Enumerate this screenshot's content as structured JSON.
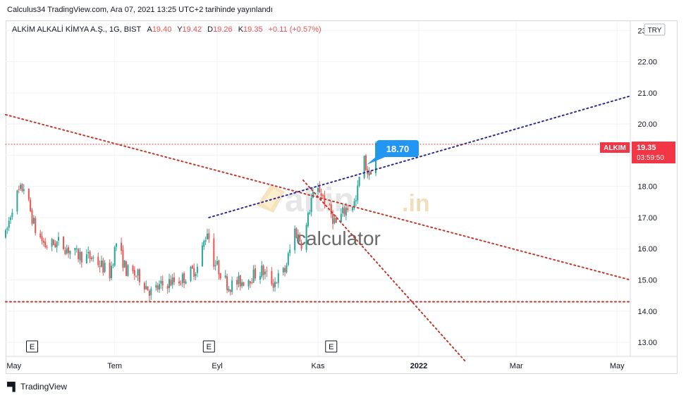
{
  "header": {
    "published": "Calculus34 TradingView.com, Ara 07, 2021 13:25 UTC+2 tarihinde yayınlandı"
  },
  "legend": {
    "symbol": "ALKİM ALKALİ KİMYA A.Ş., 1G, BIST",
    "open_label": "A",
    "open": "19.40",
    "high_label": "Y",
    "high": "19.42",
    "low_label": "D",
    "low": "19.26",
    "close_label": "K",
    "close": "19.35",
    "change": "+0.11 (+0.57%)"
  },
  "currency_badge": "TRY",
  "price_tag": {
    "ticker": "ALKIM",
    "price": "19.35",
    "countdown": "03:59:50"
  },
  "callout": {
    "value": "18.70"
  },
  "watermark": {
    "brand": "altin",
    "brand_suffix": ".in",
    "sub": "calculator"
  },
  "footer": {
    "brand": "TradingView"
  },
  "colors": {
    "up": "#26a69a",
    "down": "#ef5350",
    "red_line": "#c0392b",
    "blue_line": "#2e2a8f",
    "callout": "#2196f3",
    "tag_red": "#f23645"
  },
  "chart_data": {
    "type": "candlestick",
    "symbol": "ALKIM",
    "y_ticks": [
      "13.00",
      "14.00",
      "15.00",
      "16.00",
      "17.00",
      "18.00",
      "19.00",
      "20.00",
      "21.00",
      "22.00",
      "23.00"
    ],
    "ylim": [
      12.55,
      23.3
    ],
    "x_ticks": [
      "May",
      "Tem",
      "Eyl",
      "Kas",
      "2022",
      "Mar",
      "May"
    ],
    "x_tick_dates": [
      "2021-05-01",
      "2021-07-01",
      "2021-09-01",
      "2021-11-01",
      "2022-01-01",
      "2022-03-01",
      "2022-05-01"
    ],
    "xlim": [
      "2021-04-26",
      "2022-05-09"
    ],
    "last_price": 19.35,
    "events": [
      {
        "label": "E",
        "date": "2021-05-12"
      },
      {
        "label": "E",
        "date": "2021-08-27"
      },
      {
        "label": "E",
        "date": "2021-11-09"
      }
    ],
    "price_path": [
      [
        "2021-04-26",
        16.4
      ],
      [
        "2021-05-01",
        17.6
      ],
      [
        "2021-05-07",
        18.0
      ],
      [
        "2021-05-11",
        17.2
      ],
      [
        "2021-05-14",
        16.6
      ],
      [
        "2021-05-20",
        16.1
      ],
      [
        "2021-05-28",
        16.2
      ],
      [
        "2021-06-08",
        15.8
      ],
      [
        "2021-06-18",
        15.7
      ],
      [
        "2021-06-28",
        15.2
      ],
      [
        "2021-07-02",
        16.2
      ],
      [
        "2021-07-08",
        15.3
      ],
      [
        "2021-07-16",
        15.1
      ],
      [
        "2021-07-23",
        14.6
      ],
      [
        "2021-08-01",
        14.9
      ],
      [
        "2021-08-10",
        15.0
      ],
      [
        "2021-08-20",
        15.4
      ],
      [
        "2021-08-26",
        16.6
      ],
      [
        "2021-08-30",
        15.6
      ],
      [
        "2021-09-08",
        14.8
      ],
      [
        "2021-09-18",
        15.0
      ],
      [
        "2021-09-28",
        15.3
      ],
      [
        "2021-10-05",
        14.9
      ],
      [
        "2021-10-12",
        15.3
      ],
      [
        "2021-10-18",
        16.6
      ],
      [
        "2021-10-23",
        16.1
      ],
      [
        "2021-10-28",
        17.6
      ],
      [
        "2021-11-02",
        17.9
      ],
      [
        "2021-11-08",
        17.2
      ],
      [
        "2021-11-12",
        16.8
      ],
      [
        "2021-11-18",
        17.3
      ],
      [
        "2021-11-24",
        17.5
      ],
      [
        "2021-11-28",
        19.0
      ],
      [
        "2021-12-02",
        18.3
      ],
      [
        "2021-12-06",
        19.4
      ]
    ],
    "trendlines": [
      {
        "name": "falling resistance",
        "style": "dotted",
        "color": "red",
        "from": [
          "2021-04-26",
          20.3
        ],
        "to": [
          "2022-05-09",
          15.0
        ]
      },
      {
        "name": "rising channel",
        "style": "dotted",
        "color": "blue",
        "from": [
          "2021-08-27",
          17.0
        ],
        "to": [
          "2022-05-09",
          20.9
        ]
      },
      {
        "name": "steep decline",
        "style": "dotted",
        "color": "red",
        "from": [
          "2021-10-23",
          18.2
        ],
        "to": [
          "2022-01-29",
          12.4
        ]
      },
      {
        "name": "support",
        "style": "dotted",
        "color": "red",
        "from": [
          "2021-04-26",
          14.3
        ],
        "to": [
          "2022-05-09",
          14.3
        ]
      },
      {
        "name": "current price",
        "style": "dotted",
        "color": "red",
        "from": [
          "2021-04-26",
          19.35
        ],
        "to": [
          "2022-05-09",
          19.35
        ]
      }
    ]
  }
}
